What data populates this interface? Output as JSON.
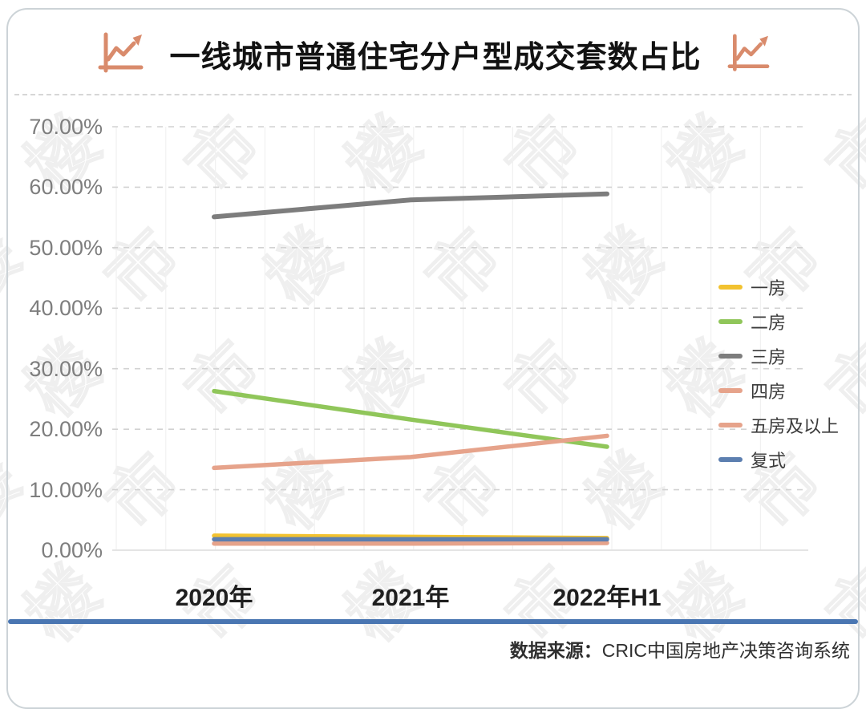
{
  "header": {
    "title_regular": "一线城市普通住宅",
    "title_bold": "分户型成交套数占比",
    "icons": {
      "left": "line-chart-icon",
      "right": "line-chart-icon"
    },
    "icon_color": "#D98B6C"
  },
  "chart_data": {
    "type": "line",
    "title": "一线城市普通住宅分户型成交套数占比",
    "categories": [
      "2020年",
      "2021年",
      "2022年H1"
    ],
    "series": [
      {
        "name": "一房",
        "color": "#F2C230",
        "values": [
          2.4,
          2.2,
          2.0
        ]
      },
      {
        "name": "二房",
        "color": "#90C65A",
        "values": [
          26.3,
          21.6,
          17.1
        ]
      },
      {
        "name": "三房",
        "color": "#7D7D7D",
        "values": [
          55.1,
          57.9,
          58.9
        ]
      },
      {
        "name": "四房",
        "color": "#E6A38B",
        "values": [
          13.6,
          15.4,
          18.9
        ]
      },
      {
        "name": "五房及以上",
        "color": "#E6A38B",
        "values": [
          1.1,
          1.1,
          1.2
        ]
      },
      {
        "name": "复式",
        "color": "#5C7FB0",
        "values": [
          1.8,
          1.8,
          1.8
        ]
      }
    ],
    "yticks": [
      "0.00%",
      "10.00%",
      "20.00%",
      "30.00%",
      "40.00%",
      "50.00%",
      "60.00%",
      "70.00%"
    ],
    "ylim": [
      0,
      70
    ],
    "xlabel": "",
    "ylabel": "",
    "grid": "horizontal-dashed",
    "legend_position": "right"
  },
  "footer": {
    "source_label": "数据来源：",
    "source_text": "CRIC中国房地产决策咨询系统",
    "divider_color": "#4A76B2"
  },
  "watermark_text": "楼市"
}
